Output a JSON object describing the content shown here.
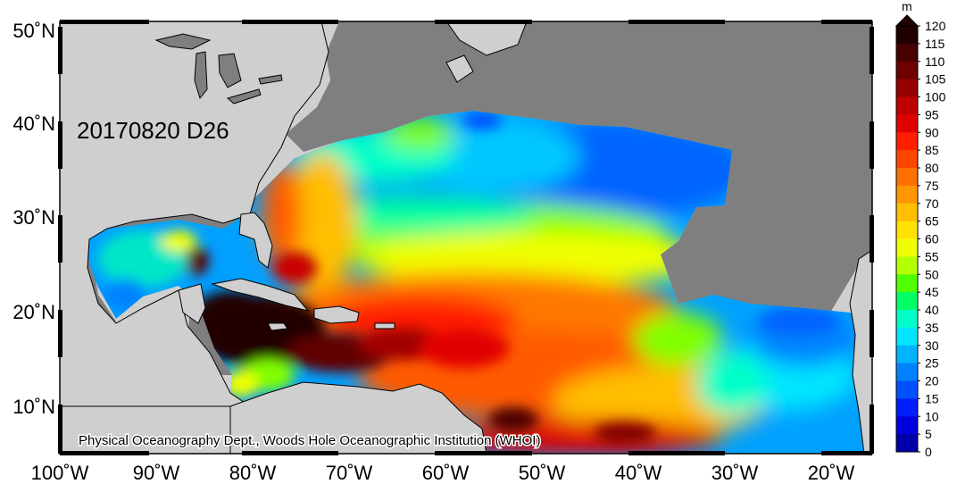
{
  "map": {
    "date_label": "20170820 D26",
    "credit": "Physical Oceanography Dept., Woods Hole Oceanographic Institution (WHOI)",
    "lat_labels": [
      "50˚N",
      "40˚N",
      "30˚N",
      "20˚N",
      "10˚N"
    ],
    "lon_labels": [
      "100˚W",
      "90˚W",
      "80˚W",
      "70˚W",
      "60˚W",
      "50˚W",
      "40˚W",
      "30˚W",
      "20˚W"
    ],
    "colors": {
      "land": "#cfcfcf",
      "no_data": "#7f7f7f"
    }
  },
  "colorbar": {
    "unit": "m",
    "tick_labels": [
      "120",
      "115",
      "110",
      "105",
      "100",
      "95",
      "90",
      "85",
      "80",
      "75",
      "70",
      "65",
      "60",
      "55",
      "50",
      "45",
      "40",
      "35",
      "30",
      "25",
      "20",
      "15",
      "10",
      "5",
      "0"
    ],
    "colors": [
      "#200000",
      "#480000",
      "#6e0000",
      "#960000",
      "#be0000",
      "#e10000",
      "#ff1e00",
      "#ff4600",
      "#ff6e00",
      "#ff9600",
      "#ffbe00",
      "#ffe100",
      "#f0ff00",
      "#b4ff00",
      "#50ff00",
      "#00ff64",
      "#00ffc8",
      "#00e6ff",
      "#00b4ff",
      "#0082ff",
      "#0050ff",
      "#001eff",
      "#0000dc",
      "#0000aa"
    ]
  }
}
